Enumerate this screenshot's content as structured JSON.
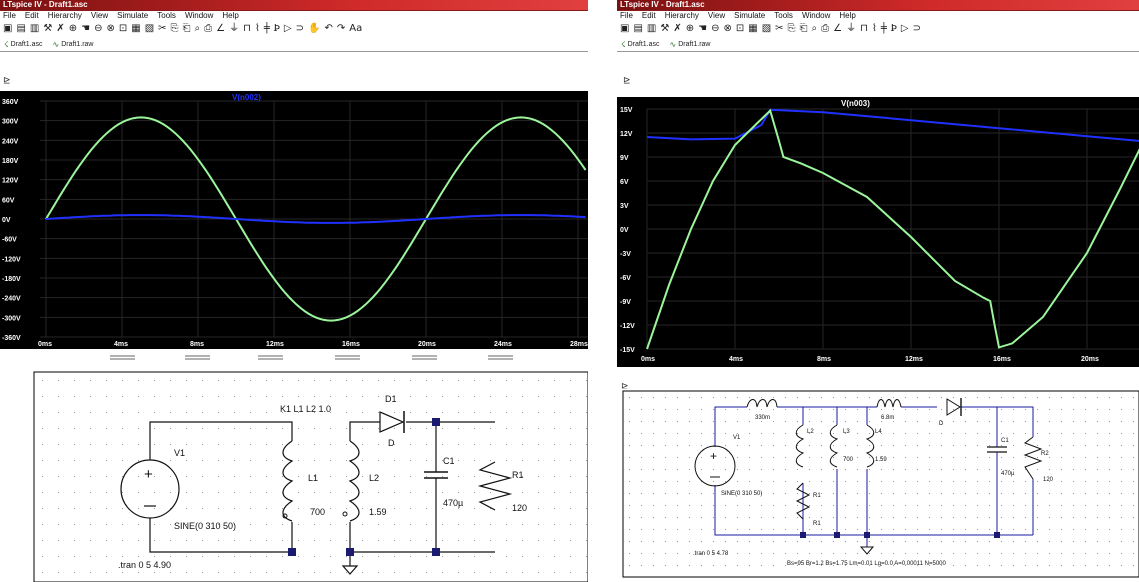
{
  "left": {
    "title": "LTspice IV - Draft1.asc",
    "menu": [
      "File",
      "Edit",
      "Hierarchy",
      "View",
      "Simulate",
      "Tools",
      "Window",
      "Help"
    ],
    "toolbar_icons": [
      "new-schematic-icon",
      "open-icon",
      "save-icon",
      "control-panel-icon",
      "run-icon",
      "zoom-in-icon",
      "pan-icon",
      "zoom-out-icon",
      "zoom-fit-icon",
      "autorange-icon",
      "cascade-icon",
      "tile-icon",
      "cut-icon",
      "copy-icon",
      "paste-icon",
      "find-icon",
      "print-icon",
      "print-preview-icon",
      "wire-icon",
      "ground-icon",
      "label-icon",
      "resistor-icon",
      "capacitor-icon",
      "inductor-icon",
      "diode-icon",
      "component-icon",
      "move-icon",
      "drag-icon",
      "undo-icon",
      "redo-icon",
      "text-icon",
      "spice-directive-icon"
    ],
    "tabs": [
      {
        "label": "Draft1.asc",
        "icon": "schematic-icon"
      },
      {
        "label": "Draft1.raw",
        "icon": "waveform-icon"
      }
    ],
    "plot": {
      "trace_label": "V(n002)",
      "y_ticks": [
        "360V",
        "300V",
        "240V",
        "180V",
        "120V",
        "60V",
        "0V",
        "-60V",
        "-120V",
        "-180V",
        "-240V",
        "-300V",
        "-360V"
      ],
      "x_ticks": [
        "0ms",
        "4ms",
        "8ms",
        "12ms",
        "16ms",
        "20ms",
        "24ms",
        "28ms"
      ]
    },
    "schematic": {
      "v1_name": "V1",
      "v1_value": "SINE(0 310 50)",
      "coupling": "K1 L1 L2 1.0",
      "l1_name": "L1",
      "l1_value": "700",
      "l2_name": "L2",
      "l2_value": "1.59",
      "d1_name": "D1",
      "d1_model": "D",
      "c1_name": "C1",
      "c1_value": "470µ",
      "r1_name": "R1",
      "r1_value": "120",
      "tran": ".tran 0 5 4.90"
    }
  },
  "right": {
    "title": "LTspice IV - Draft1.asc",
    "menu": [
      "File",
      "Edit",
      "Hierarchy",
      "View",
      "Simulate",
      "Tools",
      "Window",
      "Help"
    ],
    "tabs": [
      {
        "label": "Draft1.asc",
        "icon": "schematic-icon"
      },
      {
        "label": "Draft1.raw",
        "icon": "waveform-icon"
      }
    ],
    "plot": {
      "trace_label": "V(n003)",
      "y_ticks": [
        "15V",
        "12V",
        "9V",
        "6V",
        "3V",
        "0V",
        "-3V",
        "-6V",
        "-9V",
        "-12V",
        "-15V"
      ],
      "x_ticks": [
        "0ms",
        "4ms",
        "8ms",
        "12ms",
        "16ms",
        "20ms"
      ]
    },
    "schematic": {
      "v1_name": "V1",
      "v1_value": "SINE(0 310 50)",
      "l_top1": "330m",
      "l_top2": "6.8m",
      "l2_name": "L2",
      "l3_name": "L3",
      "l3_value": "700",
      "l4_name": "L4",
      "l4_value": "1.59",
      "r1_name": "R1",
      "r1_value": "R1",
      "c1_name": "C1",
      "c1_value": "470µ",
      "r2_name": "R2",
      "r2_value": "120",
      "d_model": "D",
      "tran": ".tran 0 5 4.78",
      "model_line": "Bs=95 Br=1.2 Bs=1.75 Lm=0.01 Lg=0.0 A=0.00011 N=5000"
    }
  },
  "colors": {
    "plot_bg": "#000000",
    "trace_green": "#9bf59b",
    "trace_blue": "#2030ff",
    "grid": "#2a2a2a",
    "wire": "#1a1aa0",
    "component": "#000000"
  }
}
